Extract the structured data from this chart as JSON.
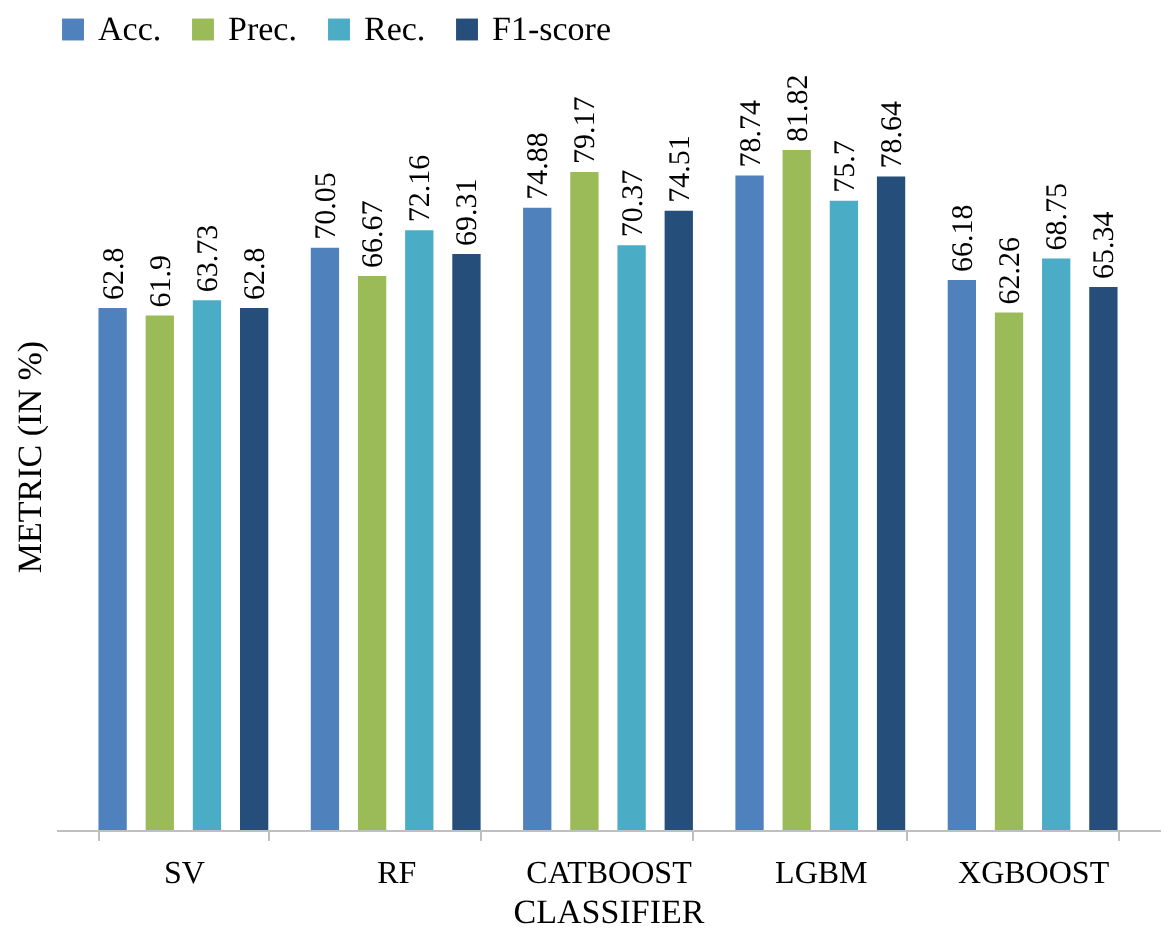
{
  "chart_data": {
    "type": "bar",
    "xlabel": "CLASSIFIER",
    "ylabel": "METRIC (IN %)",
    "categories": [
      "SV",
      "RF",
      "CATBOOST",
      "LGBM",
      "XGBOOST"
    ],
    "series": [
      {
        "name": "Acc.",
        "color": "#4f81bd",
        "values": [
          62.8,
          70.05,
          74.88,
          78.74,
          66.18
        ]
      },
      {
        "name": "Prec.",
        "color": "#9bbb59",
        "values": [
          61.9,
          66.67,
          79.17,
          81.82,
          62.26
        ]
      },
      {
        "name": "Rec.",
        "color": "#4bacc6",
        "values": [
          63.73,
          72.16,
          70.37,
          75.7,
          68.75
        ]
      },
      {
        "name": "F1-score",
        "color": "#254e7b",
        "values": [
          62.8,
          69.31,
          74.51,
          78.64,
          65.34
        ]
      }
    ],
    "tick_labels": "x",
    "data_labels": true,
    "grid": false,
    "legend": "top"
  }
}
